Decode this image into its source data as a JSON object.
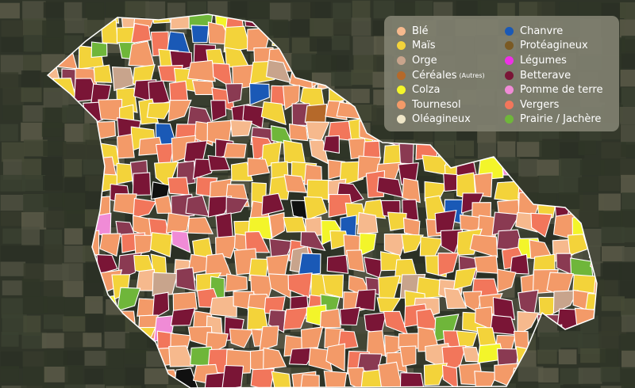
{
  "map": {
    "legend": {
      "items": [
        {
          "label": "Blé",
          "color": "#f6b98d"
        },
        {
          "label": "Maïs",
          "color": "#f3d33a"
        },
        {
          "label": "Orge",
          "color": "#c8a48c"
        },
        {
          "label": "Céréales",
          "note": "(Autres)",
          "color": "#b5692a"
        },
        {
          "label": "Colza",
          "color": "#f3f52a"
        },
        {
          "label": "Tournesol",
          "color": "#f39a68"
        },
        {
          "label": "Oléagineux",
          "color": "#efe6c8"
        },
        {
          "label": "Chanvre",
          "color": "#1a59b6"
        },
        {
          "label": "Protéagineux",
          "color": "#7a5a24"
        },
        {
          "label": "Légumes",
          "color": "#ee30e6"
        },
        {
          "label": "Betterave",
          "color": "#7a1536"
        },
        {
          "label": "Pomme de terre",
          "color": "#f08bd6"
        },
        {
          "label": "Vergers",
          "color": "#f2765b"
        },
        {
          "label": "Prairie / Jachère",
          "color": "#6fb63a"
        }
      ]
    }
  }
}
